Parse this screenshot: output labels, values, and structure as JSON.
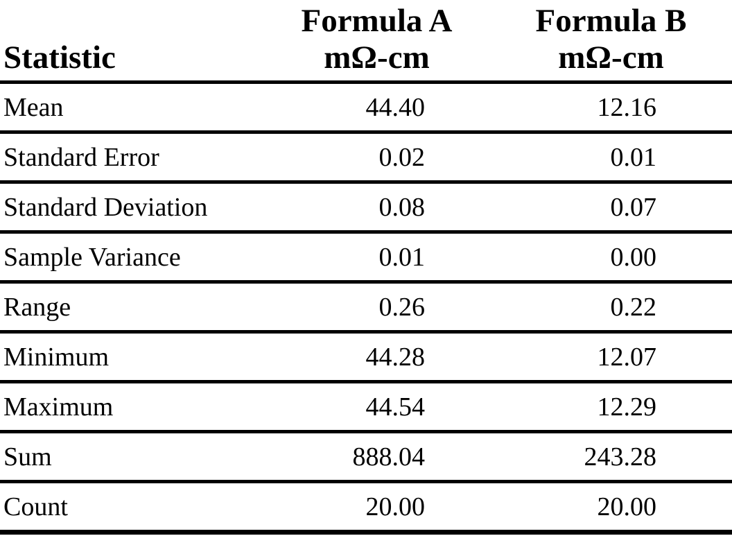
{
  "table": {
    "header": {
      "statistic_label": "Statistic",
      "formula_a_line1": "Formula A",
      "formula_a_line2": "mΩ-cm",
      "formula_b_line1": "Formula B",
      "formula_b_line2": "mΩ-cm"
    },
    "rows": [
      {
        "statistic": "Mean",
        "formula_a": "44.40",
        "formula_b": "12.16"
      },
      {
        "statistic": "Standard Error",
        "formula_a": "0.02",
        "formula_b": "0.01"
      },
      {
        "statistic": "Standard Deviation",
        "formula_a": "0.08",
        "formula_b": "0.07"
      },
      {
        "statistic": "Sample Variance",
        "formula_a": "0.01",
        "formula_b": "0.00"
      },
      {
        "statistic": "Range",
        "formula_a": "0.26",
        "formula_b": "0.22"
      },
      {
        "statistic": "Minimum",
        "formula_a": "44.28",
        "formula_b": "12.07"
      },
      {
        "statistic": "Maximum",
        "formula_a": "44.54",
        "formula_b": "12.29"
      },
      {
        "statistic": "Sum",
        "formula_a": "888.04",
        "formula_b": "243.28"
      },
      {
        "statistic": "Count",
        "formula_a": "20.00",
        "formula_b": "20.00"
      }
    ]
  },
  "colors": {
    "text": "#000000",
    "background": "#ffffff",
    "rule": "#000000"
  },
  "chart_data": {
    "type": "table",
    "columns": [
      "Statistic",
      "Formula A mΩ-cm",
      "Formula B mΩ-cm"
    ],
    "rows": [
      [
        "Mean",
        44.4,
        12.16
      ],
      [
        "Standard Error",
        0.02,
        0.01
      ],
      [
        "Standard Deviation",
        0.08,
        0.07
      ],
      [
        "Sample Variance",
        0.01,
        0.0
      ],
      [
        "Range",
        0.26,
        0.22
      ],
      [
        "Minimum",
        44.28,
        12.07
      ],
      [
        "Maximum",
        44.54,
        12.29
      ],
      [
        "Sum",
        888.04,
        243.28
      ],
      [
        "Count",
        20.0,
        20.0
      ]
    ]
  }
}
